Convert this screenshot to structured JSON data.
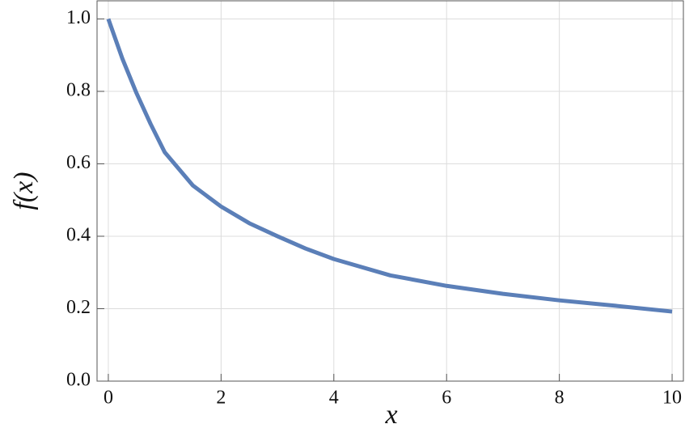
{
  "chart_data": {
    "type": "line",
    "xlabel": "x",
    "ylabel": "f(x)",
    "x": [
      0,
      0.25,
      0.5,
      0.75,
      1,
      1.5,
      2,
      2.5,
      3,
      3.5,
      4,
      5,
      6,
      7,
      8,
      9,
      10
    ],
    "series": [
      {
        "color": "#5b7fb8",
        "values": [
          1.0,
          0.89,
          0.795,
          0.71,
          0.632,
          0.54,
          0.482,
          0.436,
          0.4,
          0.366,
          0.337,
          0.292,
          0.263,
          0.241,
          0.223,
          0.208,
          0.192
        ]
      }
    ],
    "xlim": [
      -0.2,
      10.2
    ],
    "ylim": [
      0,
      1.05
    ],
    "xticks": [
      0,
      2,
      4,
      6,
      8,
      10
    ],
    "yticks": [
      {
        "value": 0,
        "label": "0.0"
      },
      {
        "value": 0.2,
        "label": "0.2"
      },
      {
        "value": 0.4,
        "label": "0.4"
      },
      {
        "value": 0.6,
        "label": "0.6"
      },
      {
        "value": 0.8,
        "label": "0.8"
      },
      {
        "value": 1,
        "label": "1.0"
      }
    ],
    "grid": true
  }
}
